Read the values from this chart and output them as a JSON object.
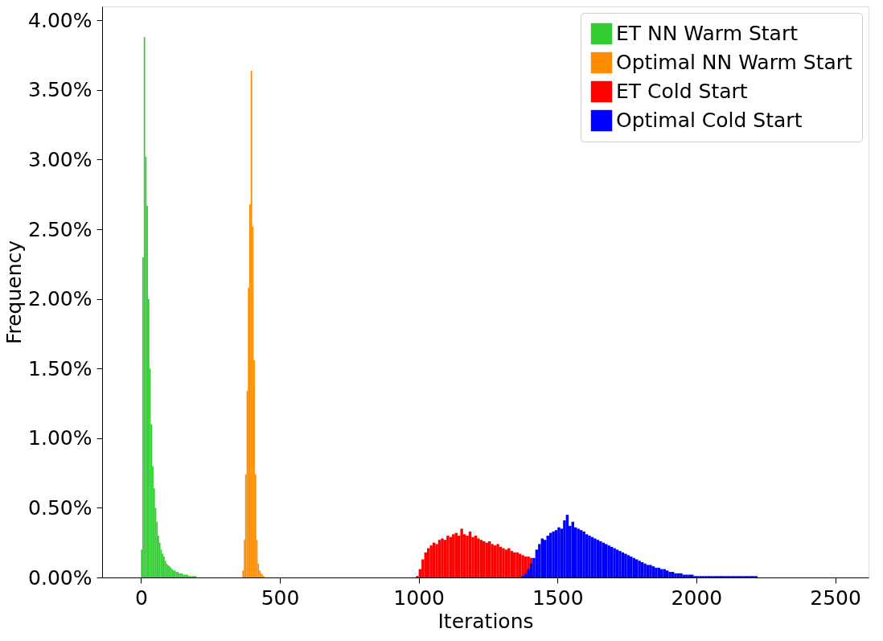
{
  "chart_data": {
    "type": "histogram",
    "xlabel": "Iterations",
    "ylabel": "Frequency",
    "xlim": [
      -140,
      2620
    ],
    "xticks": [
      0,
      500,
      1000,
      1500,
      2000,
      2500
    ],
    "ylim": [
      0,
      4.1
    ],
    "yticks": [
      {
        "value": 0,
        "label": "0.00%"
      },
      {
        "value": 0.5,
        "label": "0.50%"
      },
      {
        "value": 1,
        "label": "1.00%"
      },
      {
        "value": 1.5,
        "label": "1.50%"
      },
      {
        "value": 2,
        "label": "2.00%"
      },
      {
        "value": 2.5,
        "label": "2.50%"
      },
      {
        "value": 3,
        "label": "3.00%"
      },
      {
        "value": 3.5,
        "label": "3.50%"
      },
      {
        "value": 4,
        "label": "4.00%"
      }
    ],
    "grid": false,
    "legend": "top right",
    "bins": [
      0,
      5,
      10,
      15,
      20,
      25,
      30,
      35,
      40,
      45,
      50,
      55,
      60,
      65,
      70,
      75,
      80,
      85,
      90,
      95,
      100,
      105,
      110,
      115,
      120,
      125,
      130,
      135,
      140,
      145,
      150,
      155,
      160,
      165,
      170,
      175,
      180,
      185,
      190,
      195,
      200,
      365,
      370,
      375,
      380,
      385,
      390,
      395,
      400,
      405,
      410,
      415,
      420,
      425,
      430,
      435,
      440,
      445,
      990,
      1000,
      1010,
      1020,
      1030,
      1040,
      1050,
      1060,
      1070,
      1080,
      1090,
      1100,
      1110,
      1120,
      1130,
      1140,
      1150,
      1160,
      1170,
      1180,
      1190,
      1200,
      1210,
      1220,
      1230,
      1240,
      1250,
      1260,
      1270,
      1280,
      1290,
      1300,
      1310,
      1320,
      1330,
      1340,
      1350,
      1360,
      1370,
      1380,
      1390,
      1400,
      1410,
      1420,
      1430,
      1440,
      1450,
      1460,
      1470,
      1480,
      1490,
      1500,
      1510,
      1520,
      1530,
      1540,
      1550,
      1560,
      1570,
      1580,
      1590,
      1600,
      1610,
      1620,
      1630,
      1640,
      1650,
      1660,
      1670,
      1680,
      1690,
      1700,
      1710,
      1720,
      1730,
      1740,
      1750,
      1760,
      1770,
      1780,
      1790,
      1800,
      1810,
      1820,
      1830,
      1840,
      1850,
      1860,
      1870,
      1880,
      1890,
      1900,
      1910,
      1920,
      1930,
      1940,
      1950,
      1960,
      1970,
      1980,
      1990,
      2000,
      2010,
      2020,
      2030,
      2040,
      2050,
      2060,
      2070,
      2080,
      2090,
      2100,
      2110,
      2120,
      2130,
      2140,
      2150,
      2160,
      2170,
      2180,
      2190,
      2200,
      2210,
      2220
    ],
    "series": [
      {
        "name": "ET NN Warm Start",
        "color": "#32cd32",
        "values": [
          0.2,
          2.3,
          3.88,
          3.02,
          2.67,
          2.0,
          1.5,
          1.1,
          0.8,
          0.64,
          0.5,
          0.4,
          0.3,
          0.25,
          0.2,
          0.17,
          0.15,
          0.12,
          0.1,
          0.09,
          0.08,
          0.07,
          0.06,
          0.05,
          0.05,
          0.04,
          0.04,
          0.03,
          0.03,
          0.03,
          0.02,
          0.02,
          0.02,
          0.02,
          0.01,
          0.01,
          0.01,
          0.01,
          0.01,
          0.01,
          null,
          null,
          null,
          null,
          null,
          null,
          null,
          null,
          null,
          null,
          null,
          null,
          null,
          null,
          null,
          null,
          null,
          null,
          null,
          null,
          null,
          null,
          null,
          null,
          null,
          null,
          null,
          null,
          null,
          null,
          null,
          null,
          null,
          null,
          null,
          null,
          null,
          null,
          null,
          null,
          null,
          null,
          null,
          null,
          null,
          null,
          null,
          null,
          null,
          null,
          null,
          null,
          null,
          null,
          null,
          null,
          null,
          null,
          null,
          null,
          null,
          null,
          null,
          null,
          null,
          null,
          null,
          null,
          null,
          null,
          null,
          null,
          null,
          null,
          null,
          null,
          null,
          null,
          null,
          null,
          null,
          null,
          null,
          null,
          null,
          null,
          null,
          null,
          null,
          null,
          null,
          null,
          null,
          null,
          null,
          null,
          null,
          null,
          null,
          null,
          null,
          null,
          null,
          null,
          null,
          null,
          null,
          null,
          null,
          null,
          null,
          null,
          null,
          null,
          null,
          null,
          null,
          null,
          null,
          null,
          null,
          null,
          null,
          null,
          null,
          null,
          null,
          null,
          null,
          null,
          null,
          null,
          null,
          null,
          null,
          null,
          null,
          null,
          null,
          null,
          null
        ]
      },
      {
        "name": "Optimal NN Warm Start",
        "color": "#ff8c00",
        "values": [
          null,
          null,
          null,
          null,
          null,
          null,
          null,
          null,
          null,
          null,
          null,
          null,
          null,
          null,
          null,
          null,
          null,
          null,
          null,
          null,
          null,
          null,
          null,
          null,
          null,
          null,
          null,
          null,
          null,
          null,
          null,
          null,
          null,
          null,
          null,
          null,
          null,
          null,
          null,
          null,
          null,
          0.05,
          0.27,
          0.74,
          1.34,
          2.08,
          2.68,
          3.64,
          2.52,
          1.56,
          0.74,
          0.27,
          0.1,
          0.05,
          0.03,
          0.02,
          0.01,
          null,
          null,
          null,
          null,
          null,
          null,
          null,
          null,
          null,
          null,
          null,
          null,
          null,
          null,
          null,
          null,
          null,
          null,
          null,
          null,
          null,
          null,
          null,
          null,
          null,
          null,
          null,
          null,
          null,
          null,
          null,
          null,
          null,
          null,
          null,
          null,
          null,
          null,
          null,
          null,
          null,
          null,
          null,
          null,
          null,
          null,
          null,
          null,
          null,
          null,
          null,
          null,
          null,
          null,
          null,
          null,
          null,
          null,
          null,
          null,
          null,
          null,
          null,
          null,
          null,
          null,
          null,
          null,
          null,
          null,
          null,
          null,
          null,
          null,
          null,
          null,
          null,
          null,
          null,
          null,
          null,
          null,
          null,
          null,
          null,
          null,
          null,
          null,
          null,
          null,
          null,
          null,
          null,
          null,
          null,
          null,
          null,
          null,
          null,
          null,
          null,
          null,
          null,
          null,
          null,
          null,
          null,
          null,
          null,
          null,
          null,
          null,
          null,
          null,
          null,
          null,
          null,
          null,
          null,
          null,
          null,
          null,
          null,
          null
        ]
      },
      {
        "name": "ET Cold Start",
        "color": "#ff0000",
        "values": [
          null,
          null,
          null,
          null,
          null,
          null,
          null,
          null,
          null,
          null,
          null,
          null,
          null,
          null,
          null,
          null,
          null,
          null,
          null,
          null,
          null,
          null,
          null,
          null,
          null,
          null,
          null,
          null,
          null,
          null,
          null,
          null,
          null,
          null,
          null,
          null,
          null,
          null,
          null,
          null,
          null,
          null,
          null,
          null,
          null,
          null,
          null,
          null,
          null,
          null,
          null,
          null,
          null,
          null,
          null,
          null,
          null,
          null,
          0.01,
          0.06,
          0.13,
          0.18,
          0.21,
          0.23,
          0.25,
          0.24,
          0.27,
          0.28,
          0.27,
          0.3,
          0.29,
          0.31,
          0.32,
          0.3,
          0.35,
          0.31,
          0.3,
          0.33,
          0.29,
          0.3,
          0.28,
          0.27,
          0.26,
          0.25,
          0.26,
          0.24,
          0.23,
          0.24,
          0.22,
          0.21,
          0.2,
          0.21,
          0.19,
          0.18,
          0.18,
          0.17,
          0.16,
          0.15,
          0.15,
          0.14,
          null,
          null,
          null,
          null,
          null,
          null,
          null,
          null,
          null,
          null,
          null,
          null,
          null,
          null,
          null,
          null,
          null,
          null,
          null,
          null,
          null,
          null,
          null,
          null,
          null,
          null,
          null,
          null,
          null,
          null,
          null,
          null,
          null,
          null,
          null,
          null,
          null,
          null,
          null,
          null,
          null,
          null,
          null,
          null,
          null,
          null,
          null,
          null,
          null,
          null,
          null,
          null,
          null,
          null,
          null,
          null,
          null,
          null,
          null,
          null,
          null,
          null,
          null,
          null,
          null,
          null,
          null,
          null,
          null,
          null,
          null,
          null,
          null,
          null,
          null,
          null,
          null,
          null,
          null,
          null,
          null
        ]
      },
      {
        "name": "Optimal Cold Start",
        "color": "#0000ff",
        "values": [
          null,
          null,
          null,
          null,
          null,
          null,
          null,
          null,
          null,
          null,
          null,
          null,
          null,
          null,
          null,
          null,
          null,
          null,
          null,
          null,
          null,
          null,
          null,
          null,
          null,
          null,
          null,
          null,
          null,
          null,
          null,
          null,
          null,
          null,
          null,
          null,
          null,
          null,
          null,
          null,
          null,
          null,
          null,
          null,
          null,
          null,
          null,
          null,
          null,
          null,
          null,
          null,
          null,
          null,
          null,
          null,
          null,
          null,
          null,
          null,
          null,
          null,
          null,
          null,
          null,
          null,
          null,
          null,
          null,
          null,
          null,
          null,
          null,
          null,
          null,
          null,
          null,
          null,
          null,
          null,
          null,
          null,
          null,
          null,
          null,
          null,
          null,
          null,
          null,
          null,
          null,
          null,
          null,
          null,
          null,
          null,
          0.01,
          0.03,
          0.06,
          0.1,
          0.14,
          0.2,
          0.24,
          0.28,
          0.27,
          0.3,
          0.32,
          0.33,
          0.34,
          0.36,
          0.35,
          0.41,
          0.45,
          0.37,
          0.4,
          0.36,
          0.35,
          0.34,
          0.33,
          0.31,
          0.3,
          0.29,
          0.28,
          0.27,
          0.26,
          0.25,
          0.24,
          0.23,
          0.22,
          0.21,
          0.2,
          0.19,
          0.18,
          0.17,
          0.16,
          0.15,
          0.14,
          0.13,
          0.12,
          0.11,
          0.1,
          0.09,
          0.09,
          0.08,
          0.07,
          0.07,
          0.06,
          0.06,
          0.05,
          0.04,
          0.04,
          0.03,
          0.03,
          0.03,
          0.02,
          0.02,
          0.02,
          0.02,
          0.01,
          0.01,
          0.01,
          0.01,
          0.01,
          0.01,
          0.01,
          0.01,
          0.01,
          0.01,
          0.01,
          0.01,
          0.01,
          0.01,
          0.01,
          0.01,
          0.01,
          0.01,
          0.01,
          0.01,
          0.01,
          0.01,
          0.01
        ]
      }
    ]
  }
}
